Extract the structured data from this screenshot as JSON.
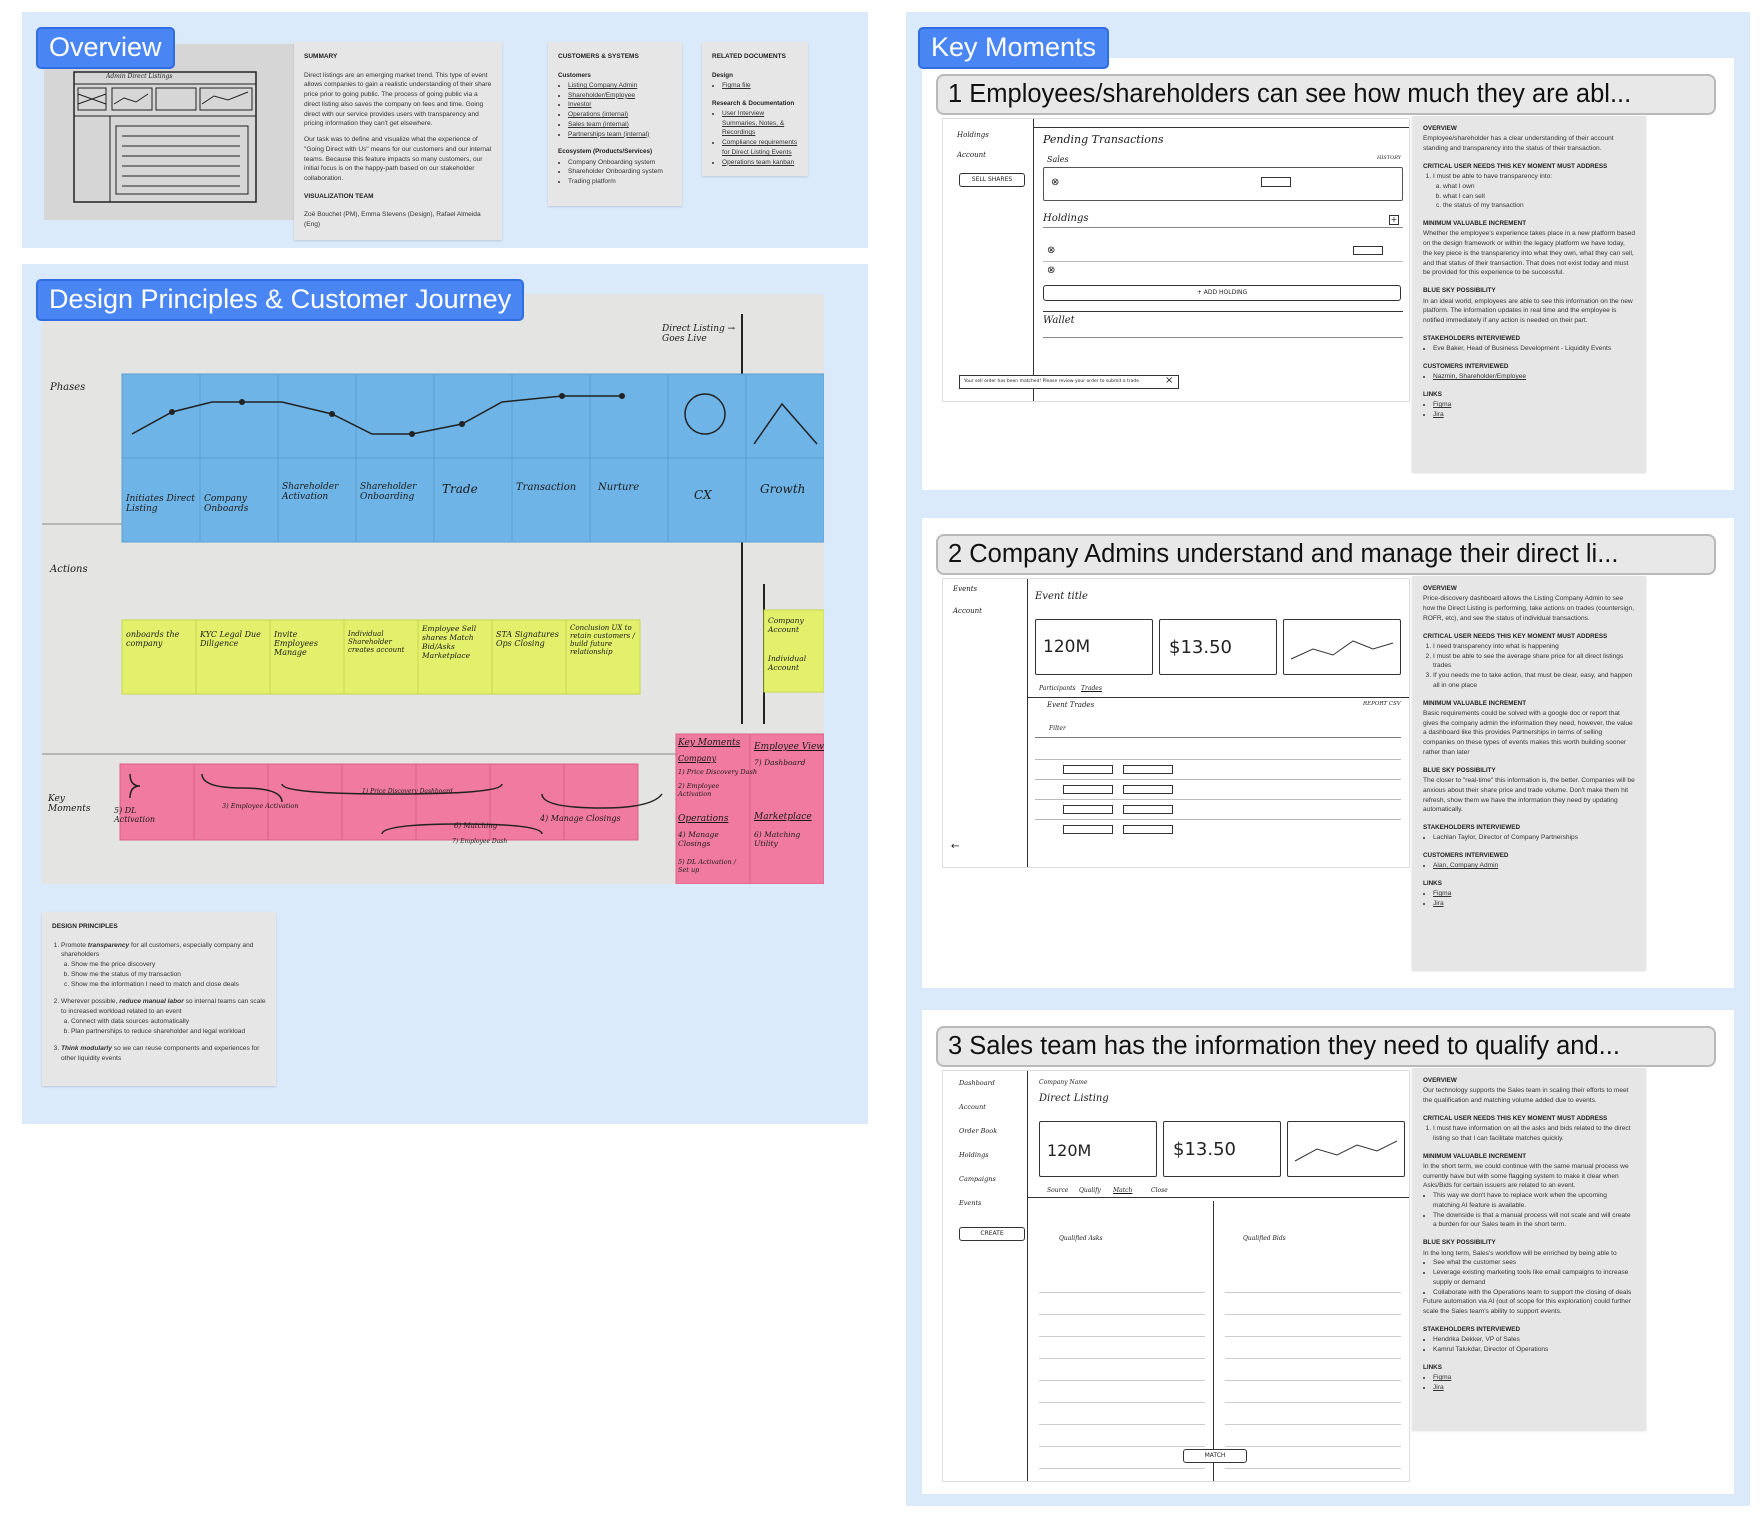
{
  "overview": {
    "title": "Overview",
    "sketch_caption": "Admin Direct Listings",
    "summary": {
      "heading": "SUMMARY",
      "p1": "Direct listings are an emerging market trend. This type of event allows companies to gain a realistic understanding of their share price prior to going public. The process of going public via a direct listing also saves the company on fees and time. Going direct with our service provides users with transparency and pricing information they can't get elsewhere.",
      "p2": "Our task was to define and visualize what the experience of \"Going Direct with Us\" means for our customers and our internal teams. Because this feature impacts so many customers, our initial focus is on the happy-path based on our stakeholder collaboration.",
      "team_heading": "VISUALIZATION TEAM",
      "team": "Zoë Bouchet (PM), Emma Stevens (Design), Rafael Almeida (Eng)"
    },
    "customers": {
      "heading": "CUSTOMERS & SYSTEMS",
      "customers_label": "Customers",
      "customers": [
        "Listing Company Admin",
        "Shareholder/Employee",
        "Investor",
        "Operations (internal)",
        "Sales team (internal)",
        "Partnerships team (internal)"
      ],
      "eco_label": "Ecosystem (Products/Services)",
      "ecosystem": [
        "Company Onboarding system",
        "Shareholder Onboarding system",
        "Trading platform"
      ]
    },
    "related": {
      "heading": "RELATED DOCUMENTS",
      "design_label": "Design",
      "design": [
        "Figma file"
      ],
      "research_label": "Research & Documentation",
      "research": [
        "User Interview Summaries, Notes, & Recordings",
        "Compliance requirements for Direct Listing Events",
        "Operations team kanban"
      ]
    }
  },
  "journey": {
    "title": "Design Principles & Customer Journey",
    "row_labels": {
      "phases": "Phases",
      "actions": "Actions",
      "key_moments": "Key Moments"
    },
    "direct_listing_note": "Direct Listing → Goes Live",
    "phases": [
      "Initiates Direct Listing",
      "Company Onboards",
      "Shareholder Activation",
      "Shareholder Onboarding",
      "Trade",
      "Transaction",
      "Nurture",
      "CX",
      "Growth"
    ],
    "actions": [
      "onboards the company",
      "KYC Legal Due Diligence",
      "Invite Employees Manage",
      "Individual Shareholder creates account",
      "Employee Sell shares Match Bid/Asks Marketplace",
      "STA Signatures Ops Closing",
      "Conclusion UX to retain customers / build future relationship"
    ],
    "actions_right": [
      "Company Account",
      "Individual Account"
    ],
    "key_moments_notes": [
      "5) DL Activation",
      "3) Employee Activation",
      "1) Price Discovery Dashboard",
      "4) Manage Closings",
      "6) Matching",
      "7) Employee Dash"
    ],
    "key_moments_side": {
      "heading": "Key Moments",
      "company": "Company",
      "company_items": [
        "1) Price Discovery Dash",
        "2) Employee Activation"
      ],
      "operations": "Operations",
      "operations_items": [
        "4) Manage Closings",
        "5) DL Activation / Set up"
      ],
      "employee_view": "Employee View",
      "employee_items": [
        "7) Dashboard"
      ],
      "marketplace": "Marketplace",
      "marketplace_items": [
        "6) Matching Utility"
      ]
    },
    "principles": {
      "heading": "DESIGN PRINCIPLES",
      "p1_prefix": "Promote ",
      "p1_em": "transparency",
      "p1_suffix": " for all customers, especially company and shareholders",
      "p1_items": [
        "Show me the price discovery",
        "Show me the status of my transaction",
        "Show me the information I need to match and close deals"
      ],
      "p2_prefix": "Wherever possible, ",
      "p2_em": "reduce manual labor",
      "p2_suffix": " so internal teams can scale to increased workload related to an event",
      "p2_items": [
        "Connect with data sources automatically",
        "Plan partnerships to reduce shareholder and legal workload"
      ],
      "p3_em": "Think modularly",
      "p3_suffix": " so we can reuse components and experiences for other liquidity events"
    }
  },
  "key_moments": {
    "title": "Key Moments",
    "moments": [
      {
        "title": "1 Employees/shareholders can see how much they are abl...",
        "overview": "Employee/shareholder has a clear understanding of their account standing and transparency into the status of their transaction.",
        "critical_items_numbered": [
          "I must be able to have transparency into:"
        ],
        "critical_sub": [
          "what I own",
          "what I can sell",
          "the status of my transaction"
        ],
        "mvi": "Whether the employee's experience takes place in a new platform based on the design framework or within the legacy platform we have today, the key piece is the transparency into what they own, what they can sell, and that status of their transaction. That does not exist today and must be provided for this experience to be successful.",
        "blue_sky": "In an ideal world, employees are able to see this information on the new platform. The information updates in real time and the employee is notified immediately if any action is needed on their part.",
        "stakeholders": [
          "Eve Baker, Head of Business Development - Liquidity Events"
        ],
        "customers": [
          "Nazmin, Shareholder/Employee"
        ],
        "links": [
          "Figma",
          "Jira"
        ],
        "sketch": {
          "nav": [
            "Holdings",
            "Account"
          ],
          "sell_button": "SELL SHARES",
          "pending": "Pending Transactions",
          "sales": "Sales",
          "history": "HISTORY",
          "holdings": "Holdings",
          "add_holding": "+ ADD HOLDING",
          "wallet": "Wallet",
          "toast": "Your sell order has been matched! Please review your order to submit a trade"
        }
      },
      {
        "title": "2 Company Admins understand and manage their direct li...",
        "overview": "Price-discovery dashboard allows the Listing Company Admin to see how the Direct Listing is performing, take actions on trades (countersign, ROFR, etc), and see the status of individual transactions.",
        "critical_items_numbered": [
          "I need transparency into what is happening",
          "I must be able to see the average share price for all direct listings trades",
          "If you needs me to take action, that must be clear, easy, and happen all in one place"
        ],
        "mvi": "Basic requirements could be solved with a google doc or report that gives the company admin the information they need, however, the value a dashboard like this provides Partnerships in terms of selling companies on these types of events makes this worth building sooner rather than later",
        "blue_sky": "The closer to \"real-time\" this information is, the better. Companies will be anxious about their share price and trade volume. Don't make them hit refresh, show them we have the information they need by updating automatically.",
        "stakeholders": [
          "Lachlan Taylor, Director of Company Partnerships"
        ],
        "customers": [
          "Alan, Company Admin"
        ],
        "links": [
          "Figma",
          "Jira"
        ],
        "sketch": {
          "nav": [
            "Events",
            "Account"
          ],
          "event_title": "Event title",
          "stat1": "120M",
          "stat2": "$13.50",
          "tabs": [
            "Participants",
            "Trades"
          ],
          "event_trades": "Event Trades",
          "report": "REPORT CSV",
          "filter": "Filter"
        }
      },
      {
        "title": "3 Sales team has the information they need to qualify and...",
        "overview": "Our technology supports the Sales team in scaling their efforts to meet the qualification and matching volume added due to events.",
        "critical_items_numbered": [
          "I must have information on all the asks and bids related to the direct listing so that I can facilitate matches quickly."
        ],
        "mvi": "In the short term, we could continue with the same manual process we currently have but with some flagging system to make it clear when Asks/Bids for certain issuers are related to an event.",
        "mvi_bullets": [
          "This way we don't have to replace work when the upcoming matching AI feature is available.",
          "The downside is that a manual process will not scale and will create a burden for our Sales team in the short term."
        ],
        "blue_sky": "In the long term, Sales's workflow will be enriched by being able to",
        "blue_sky_bullets": [
          "See what the customer sees",
          "Leverage existing marketing tools like email campaigns to increase supply or demand",
          "Collaborate with the Operations team to support the closing of deals"
        ],
        "blue_sky_tail": "Future automation via AI (out of scope for this exploration) could further scale the Sales team's ability to support events.",
        "stakeholders": [
          "Hendrika Dekker, VP of Sales",
          "Kamrul Talukdar, Director of Operations"
        ],
        "links": [
          "Figma",
          "Jira"
        ],
        "sketch": {
          "nav": [
            "Dashboard",
            "Account",
            "Order Book",
            "Holdings",
            "Campaigns",
            "Events"
          ],
          "create": "CREATE",
          "company": "Company Name",
          "listing": "Direct Listing",
          "stat1": "120M",
          "stat2": "$13.50",
          "tabs": [
            "Source",
            "Qualify",
            "Match",
            "Close"
          ],
          "asks": "Qualified Asks",
          "bids": "Qualified Bids",
          "match": "MATCH"
        }
      }
    ],
    "labels": {
      "overview": "OVERVIEW",
      "critical": "CRITICAL USER NEEDS THIS KEY MOMENT MUST ADDRESS",
      "mvi": "MINIMUM VALUABLE INCREMENT",
      "blue_sky": "BLUE SKY POSSIBILITY",
      "stakeholders": "STAKEHOLDERS INTERVIEWED",
      "customers": "CUSTOMERS INTERVIEWED",
      "links": "LINKS"
    }
  }
}
